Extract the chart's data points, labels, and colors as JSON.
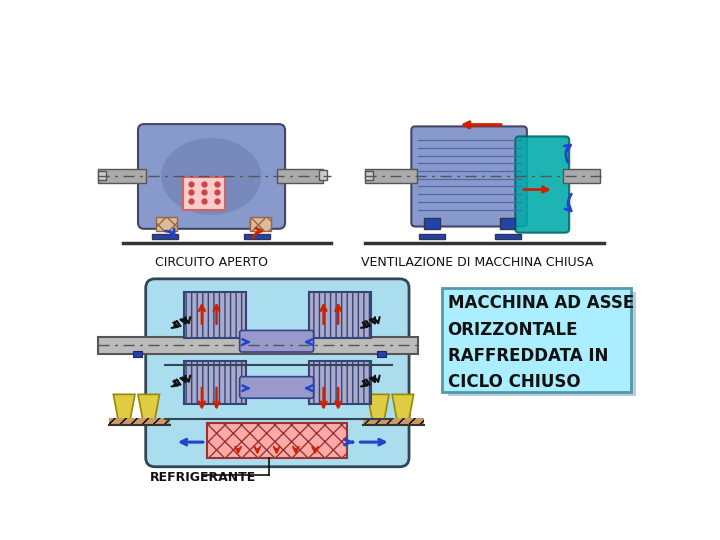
{
  "bg_color": "#ffffff",
  "title_texts": {
    "circuito": "CIRCUITO APERTO",
    "ventilazione": "VENTILAZIONE DI MACCHINA CHIUSA",
    "refrigerante": "REFRIGERANTE",
    "macchina": "MACCHINA AD ASSE\nORIZZONTALE\nRAFFREDDATA IN\nCICLO CHIUSO"
  },
  "motor_body": "#8899cc",
  "motor_body_dark": "#6677aa",
  "motor_shaft": "#aaaaaa",
  "motor_feet": "#2244aa",
  "floor_line": "#333333",
  "dash_line": "#555555",
  "vent_pink": "#ffcccc",
  "vent_dots": "#cc4444",
  "vent_hatch_fill": "#ddbb99",
  "vent_hatch_edge": "#996644",
  "teal": "#00aaaa",
  "teal_dark": "#006666",
  "light_blue_fill": "#aaddee",
  "yellow_block": "#ddcc44",
  "yellow_edge": "#998800",
  "hatch_brown": "#cc9966",
  "text_box_fill": "#aaeeff",
  "text_box_border": "#5599aa",
  "red_arrow": "#cc2200",
  "blue_arrow": "#2244cc",
  "black": "#111111",
  "gray_shaft": "#bbbbbb",
  "coil_gray": "#aaaacc",
  "coil_edge": "#334477",
  "refrig_fill": "#ffaaaa",
  "refrig_edge": "#993333",
  "motor_edge": "#444466",
  "rib_color": "#5566aa"
}
